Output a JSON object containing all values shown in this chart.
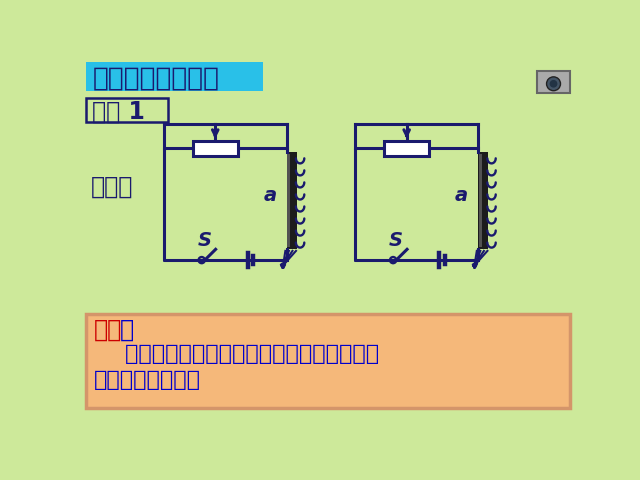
{
  "bg_color": "#cde99a",
  "title_bg": "#29c0e8",
  "title_text": "二、电磁铁的磁性",
  "title_color": "#1a1a6e",
  "title_fontsize": 19,
  "demo_text": "演示 1",
  "demo_fontsize": 17,
  "demo_color": "#1a1a6e",
  "xian_text": "现象：",
  "xian_fontsize": 17,
  "xian_color": "#1a1a6e",
  "circuit_color": "#1a1a6e",
  "circuit_lw": 2.2,
  "label_a_color": "#1a1a6e",
  "label_s_color": "#1a1a6e",
  "conclusion_bg": "#f5b87a",
  "conclusion_border": "#d4956a",
  "conclusion_title": "结论",
  "conclusion_colon": "：",
  "conclusion_title_color": "#cc0000",
  "conclusion_body_color": "#0000cc",
  "conclusion_line1": "    在匠数和铁芯一定时，通入的电流越大，电",
  "conclusion_line2": "磁铁的磁性越强。",
  "conclusion_fontsize": 16
}
